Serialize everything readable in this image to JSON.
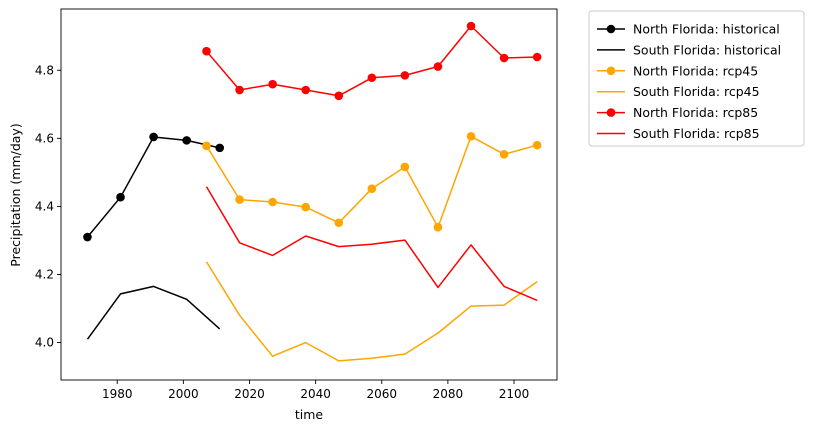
{
  "chart_data": {
    "type": "line",
    "title": "",
    "xlabel": "time",
    "ylabel": "Precipitation (mm/day)",
    "xlim": [
      1963,
      2113
    ],
    "ylim": [
      3.89,
      4.98
    ],
    "xticks": [
      1980,
      2000,
      2020,
      2040,
      2060,
      2080,
      2100
    ],
    "yticks": [
      4.0,
      4.2,
      4.4,
      4.6,
      4.8
    ],
    "ytick_labels": [
      "4.0",
      "4.2",
      "4.4",
      "4.6",
      "4.8"
    ],
    "grid": false,
    "legend_position": "outside-right",
    "series": [
      {
        "name": "North Florida: historical",
        "color": "#000000",
        "marker": true,
        "x": [
          1971,
          1981,
          1991,
          2001,
          2011
        ],
        "y": [
          4.31,
          4.427,
          4.604,
          4.594,
          4.572
        ]
      },
      {
        "name": "South Florida: historical",
        "color": "#000000",
        "marker": false,
        "x": [
          1971,
          1981,
          1991,
          2001,
          2011
        ],
        "y": [
          4.01,
          4.143,
          4.165,
          4.127,
          4.04
        ]
      },
      {
        "name": "North Florida: rcp45",
        "color": "#ffa500",
        "marker": true,
        "x": [
          2007,
          2017,
          2027,
          2037,
          2047,
          2057,
          2067,
          2077,
          2087,
          2097,
          2107
        ],
        "y": [
          4.578,
          4.42,
          4.413,
          4.398,
          4.352,
          4.452,
          4.516,
          4.339,
          4.606,
          4.553,
          4.58
        ]
      },
      {
        "name": "South Florida: rcp45",
        "color": "#ffa500",
        "marker": false,
        "x": [
          2007,
          2017,
          2027,
          2037,
          2047,
          2057,
          2067,
          2077,
          2087,
          2097,
          2107
        ],
        "y": [
          4.237,
          4.08,
          3.96,
          4.0,
          3.946,
          3.954,
          3.966,
          4.028,
          4.107,
          4.11,
          4.179
        ]
      },
      {
        "name": "North Florida: rcp85",
        "color": "#ff0000",
        "marker": true,
        "x": [
          2007,
          2017,
          2027,
          2037,
          2047,
          2057,
          2067,
          2077,
          2087,
          2097,
          2107
        ],
        "y": [
          4.856,
          4.742,
          4.759,
          4.742,
          4.725,
          4.778,
          4.785,
          4.811,
          4.93,
          4.836,
          4.839
        ]
      },
      {
        "name": "South Florida: rcp85",
        "color": "#ff0000",
        "marker": false,
        "x": [
          2007,
          2017,
          2027,
          2037,
          2047,
          2057,
          2067,
          2077,
          2087,
          2097,
          2107
        ],
        "y": [
          4.458,
          4.293,
          4.256,
          4.313,
          4.282,
          4.289,
          4.301,
          4.162,
          4.287,
          4.165,
          4.124
        ]
      }
    ]
  }
}
